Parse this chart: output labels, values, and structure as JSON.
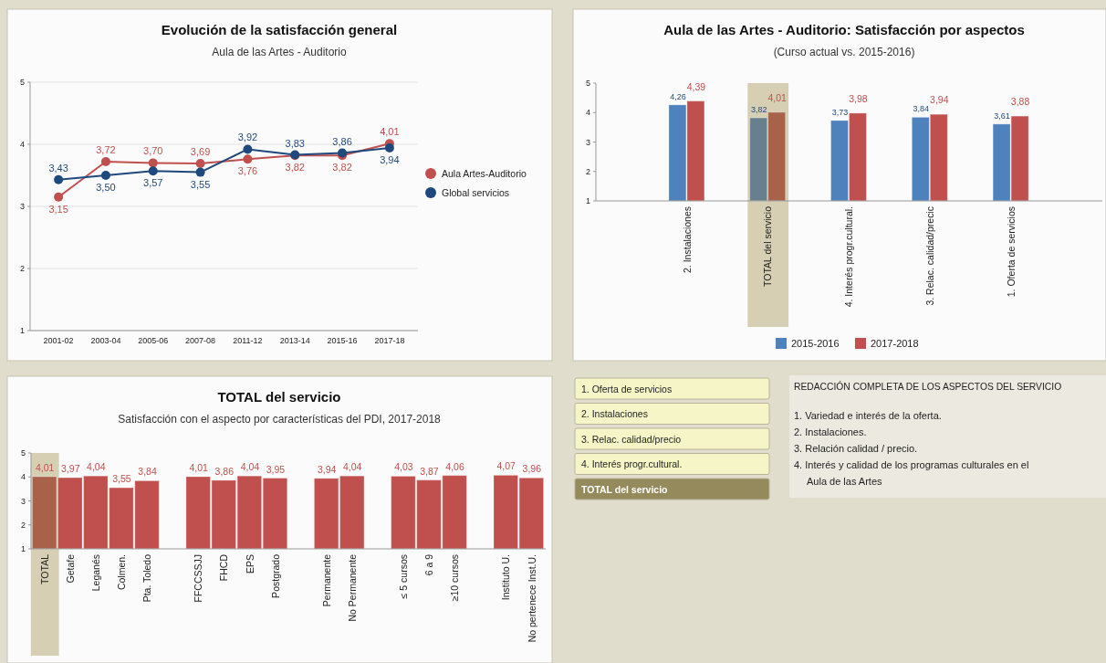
{
  "chart_data": [
    {
      "type": "line",
      "title": "Evolución de la satisfacción general",
      "subtitle": "Aula de las Artes - Auditorio",
      "categories": [
        "2001-02",
        "2003-04",
        "2005-06",
        "2007-08",
        "2011-12",
        "2013-14",
        "2015-16",
        "2017-18"
      ],
      "ylim": [
        1,
        5
      ],
      "yticks": [
        1,
        2,
        3,
        4,
        5
      ],
      "grid": "y",
      "legend": "right",
      "marker": "circle",
      "series": [
        {
          "name": "Aula Artes-Auditorio",
          "color": "#c0504d",
          "values": [
            3.15,
            3.72,
            3.7,
            3.69,
            3.76,
            3.82,
            3.82,
            4.01
          ],
          "value_labels": [
            "3,15",
            "3,72",
            "3,70",
            "3,69",
            "3,76",
            "3,82",
            "3,82",
            "4,01"
          ]
        },
        {
          "name": "Global servicios",
          "color": "#1f497d",
          "values": [
            3.43,
            3.5,
            3.57,
            3.55,
            3.92,
            3.83,
            3.86,
            3.94
          ],
          "value_labels": [
            "3,43",
            "3,50",
            "3,57",
            "3,55",
            "3,92",
            "3,83",
            "3,86",
            "3,94"
          ]
        }
      ]
    },
    {
      "type": "bar",
      "title": "Aula de las Artes - Auditorio: Satisfacción por aspectos",
      "subtitle": "(Curso actual vs. 2015-2016)",
      "categories": [
        "2. Instalaciones",
        "TOTAL del servicio",
        "4. Interés progr.cultural.",
        "3. Relac. calidad/precic",
        "1. Oferta de servicios"
      ],
      "ylim": [
        1,
        5
      ],
      "yticks": [
        1,
        2,
        3,
        4,
        5
      ],
      "legend": "bottom",
      "bands": [
        {
          "axis": "x",
          "from": "TOTAL del servicio",
          "to": "TOTAL del servicio",
          "color": "#d6cfb4"
        }
      ],
      "series": [
        {
          "name": "2015-2016",
          "color": "#4f81bd",
          "colors": [
            "#4f81bd",
            "#687f8e",
            "#4f81bd",
            "#4f81bd",
            "#4f81bd"
          ],
          "values": [
            4.26,
            3.82,
            3.73,
            3.84,
            3.61
          ],
          "value_labels": [
            "4,26",
            "3,82",
            "3,73",
            "3,84",
            "3,61"
          ]
        },
        {
          "name": "2017-2018",
          "color": "#c0504d",
          "colors": [
            "#c0504d",
            "#a8624a",
            "#c0504d",
            "#c0504d",
            "#c0504d"
          ],
          "values": [
            4.39,
            4.01,
            3.98,
            3.94,
            3.88
          ],
          "value_labels": [
            "4,39",
            "4,01",
            "3,98",
            "3,94",
            "3,88"
          ]
        }
      ]
    },
    {
      "type": "bar",
      "title": "TOTAL del servicio",
      "subtitle": "Satisfacción con el aspecto por características del PDI, 2017-2018",
      "categories": [
        "TOTAL",
        "Getafe",
        "Leganés",
        "Colmen.",
        "Pta. Toledo",
        null,
        "FFCCSSJJ",
        "FHCD",
        "EPS",
        "Postgrado",
        null,
        "Permanente",
        "No Permanente",
        null,
        "≤ 5 cursos",
        "6 a 9",
        "≥10 cursos",
        null,
        "Instituto U.",
        "No pertenece Inst.U."
      ],
      "ylim": [
        1,
        5
      ],
      "yticks": [
        1,
        2,
        3,
        4,
        5
      ],
      "bands": [
        {
          "axis": "x",
          "from": "TOTAL",
          "to": "TOTAL",
          "color": "#d6cfb4"
        }
      ],
      "series": [
        {
          "color": "#c0504d",
          "colors": [
            "#a8624a",
            null,
            null,
            null,
            null,
            null,
            null,
            null,
            null,
            null,
            null,
            null,
            null,
            null,
            null,
            null,
            null,
            null,
            null,
            null
          ],
          "values": [
            4.01,
            3.97,
            4.04,
            3.55,
            3.84,
            null,
            4.01,
            3.86,
            4.04,
            3.95,
            null,
            3.94,
            4.04,
            null,
            4.03,
            3.87,
            4.06,
            null,
            4.07,
            3.96
          ],
          "value_labels": [
            "4,01",
            "3,97",
            "4,04",
            "3,55",
            "3,84",
            null,
            "4,01",
            "3,86",
            "4,04",
            "3,95",
            null,
            "3,94",
            "4,04",
            null,
            "4,03",
            "3,87",
            "4,06",
            null,
            "4,07",
            "3,96"
          ]
        }
      ]
    },
    {
      "type": "other",
      "title": "REDACCIÓN COMPLETA DE LOS ASPECTOS DEL SERVICIO",
      "categories": [
        "1. Oferta de servicios",
        "2. Instalaciones",
        "3. Relac. calidad/precio",
        "4. Interés progr.cultural.",
        "TOTAL del servicio"
      ],
      "annotations": [
        "1. Variedad e interés de la oferta.",
        "2. Instalaciones.",
        "3. Relación calidad / precio.",
        "4. Interés y calidad de los programas culturales en el Aula de las Artes"
      ]
    }
  ]
}
